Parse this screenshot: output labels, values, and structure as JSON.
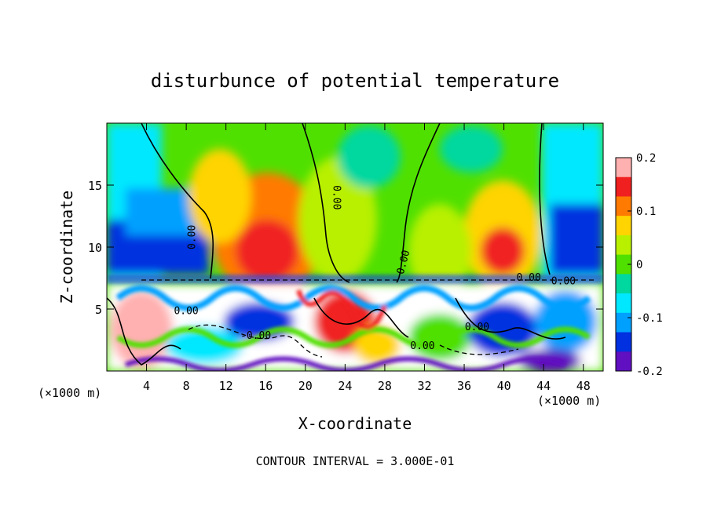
{
  "chart_data": {
    "type": "heatmap",
    "title": "disturbunce of potential temperature",
    "xlabel": "X-coordinate",
    "ylabel": "Z-coordinate",
    "x_unit_left": "(×1000 m)",
    "x_unit_right": "(×1000 m)",
    "xlim": [
      0,
      50
    ],
    "ylim": [
      0,
      20
    ],
    "x_ticks": [
      4,
      8,
      12,
      16,
      20,
      24,
      28,
      32,
      36,
      40,
      44,
      48
    ],
    "y_ticks": [
      5,
      10,
      15
    ],
    "colorbar": {
      "min": -0.2,
      "max": 0.2,
      "tick_labels": [
        "0.2",
        "0.1",
        "0",
        "-0.1",
        "-0.2"
      ],
      "tick_values": [
        0.2,
        0.1,
        0,
        -0.1,
        -0.2
      ],
      "colors": [
        "#ffb0b0",
        "#f02020",
        "#ff7a00",
        "#ffd400",
        "#b8f000",
        "#50e000",
        "#00d8a0",
        "#00e8ff",
        "#00a0ff",
        "#0030e0",
        "#6010c0"
      ]
    },
    "contour_labels": [
      {
        "text": "0.00",
        "x": 8.5,
        "y": 10.8,
        "rotate": -90
      },
      {
        "text": "0.00",
        "x": 23.2,
        "y": 14.0,
        "rotate": 90
      },
      {
        "text": "0.00",
        "x": 29.8,
        "y": 8.8,
        "rotate": -75
      },
      {
        "text": "0.00",
        "x": 42.5,
        "y": 7.6,
        "rotate": 0
      },
      {
        "text": "0.00",
        "x": 46.0,
        "y": 7.3,
        "rotate": 0
      },
      {
        "text": "0.00",
        "x": 8.0,
        "y": 4.9,
        "rotate": 0
      },
      {
        "text": "-0.00",
        "x": 15.0,
        "y": 2.9,
        "rotate": 0
      },
      {
        "text": "0.00",
        "x": 37.3,
        "y": 3.6,
        "rotate": 0
      },
      {
        "text": "0.00",
        "x": 31.8,
        "y": 2.1,
        "rotate": 0
      }
    ],
    "footer": "CONTOUR INTERVAL = 3.000E-01"
  }
}
